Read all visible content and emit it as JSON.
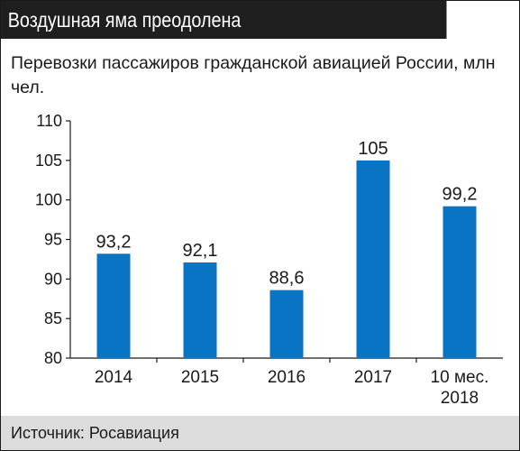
{
  "header": {
    "title": "Воздушная яма преодолена"
  },
  "subtitle": "Перевозки пассажиров гражданской авиацией России, млн чел.",
  "source": "Источник: Росавиация",
  "colors": {
    "bar": "#0a74c4",
    "header_bg": "#1f1f1f",
    "source_bg": "#dcdcdc",
    "axis": "#1a1a1a"
  },
  "chart_data": {
    "type": "bar",
    "title": "",
    "xlabel": "",
    "ylabel": "",
    "categories": [
      [
        "2014"
      ],
      [
        "2015"
      ],
      [
        "2016"
      ],
      [
        "2017"
      ],
      [
        "10 мес.",
        "2018"
      ]
    ],
    "values": [
      93.2,
      92.1,
      88.6,
      105,
      99.2
    ],
    "value_labels": [
      "93,2",
      "92,1",
      "88,6",
      "105",
      "99,2"
    ],
    "ylim": [
      80,
      110
    ],
    "yticks": [
      80,
      85,
      90,
      95,
      100,
      105,
      110
    ],
    "grid": false,
    "legend": "none"
  }
}
